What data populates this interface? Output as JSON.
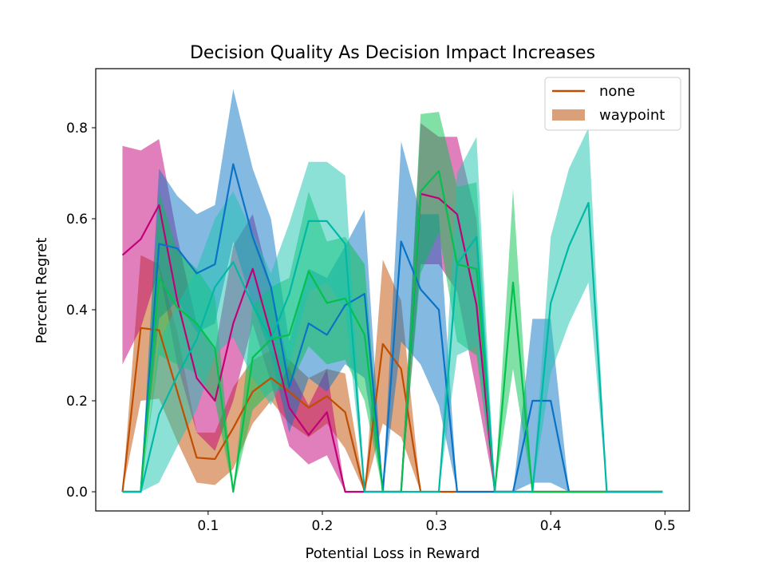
{
  "chart_data": {
    "type": "line",
    "title": "Decision Quality As Decision Impact Increases",
    "xlabel": "Potential Loss in Reward",
    "ylabel": "Percent Regret",
    "xlim": [
      -0.0,
      0.5
    ],
    "ylim": [
      -0.0,
      0.9
    ],
    "xticks": [
      0.1,
      0.2,
      0.3,
      0.4,
      0.5
    ],
    "xtick_labels": [
      "0.1",
      "0.2",
      "0.3",
      "0.4",
      "0.5"
    ],
    "yticks": [
      0.0,
      0.2,
      0.4,
      0.6,
      0.8
    ],
    "ytick_labels": [
      "0.0",
      "0.2",
      "0.4",
      "0.6",
      "0.8"
    ],
    "grid": false,
    "legend_position": "top-right",
    "legend": [
      {
        "label": "none",
        "kind": "line",
        "color": "#c04e01"
      },
      {
        "label": "waypoint",
        "kind": "patch",
        "color": "#daa07a"
      }
    ],
    "x": [
      0.025,
      0.041,
      0.057,
      0.073,
      0.09,
      0.106,
      0.122,
      0.139,
      0.155,
      0.171,
      0.188,
      0.204,
      0.22,
      0.237,
      0.253,
      0.269,
      0.286,
      0.302,
      0.318,
      0.335,
      0.351,
      0.367,
      0.384,
      0.4,
      0.416,
      0.433,
      0.449,
      0.465,
      0.482,
      0.498
    ],
    "series": [
      {
        "color": "#c04e01",
        "fill": "#c04e01",
        "values": [
          0.0,
          0.36,
          0.355,
          0.22,
          0.075,
          0.072,
          0.14,
          0.22,
          0.25,
          0.22,
          0.185,
          0.21,
          0.175,
          0.0,
          0.325,
          0.27,
          0.0,
          0.0,
          0.0,
          0.0,
          0.0,
          0.0,
          0.0,
          0.0,
          0.0,
          0.0,
          0.0,
          0.0,
          0.0,
          0.0
        ],
        "lower": [
          0.0,
          0.2,
          0.205,
          0.11,
          0.02,
          0.015,
          0.05,
          0.15,
          0.2,
          0.15,
          0.12,
          0.15,
          0.095,
          0.0,
          0.15,
          0.12,
          0.0,
          0.0,
          0.0,
          0.0,
          0.0,
          0.0,
          0.0,
          0.0,
          0.0,
          0.0,
          0.0,
          0.0,
          0.0,
          0.0
        ],
        "upper": [
          0.0,
          0.52,
          0.5,
          0.35,
          0.13,
          0.13,
          0.23,
          0.29,
          0.31,
          0.29,
          0.25,
          0.27,
          0.26,
          0.0,
          0.51,
          0.42,
          0.0,
          0.0,
          0.0,
          0.0,
          0.0,
          0.0,
          0.0,
          0.0,
          0.0,
          0.0,
          0.0,
          0.0,
          0.0,
          0.0
        ]
      },
      {
        "color": "#c20078",
        "fill": "#c20078",
        "values": [
          0.52,
          0.555,
          0.63,
          0.42,
          0.25,
          0.2,
          0.37,
          0.49,
          0.345,
          0.185,
          0.125,
          0.175,
          0.0,
          0.0,
          0.0,
          0.0,
          0.655,
          0.645,
          0.61,
          0.41,
          0.0,
          0.0,
          0.0,
          0.0,
          0.0,
          0.0,
          0.0,
          0.0,
          0.0,
          0.0
        ],
        "lower": [
          0.28,
          0.36,
          0.49,
          0.28,
          0.13,
          0.09,
          0.2,
          0.37,
          0.24,
          0.1,
          0.06,
          0.08,
          0.0,
          0.0,
          0.0,
          0.0,
          0.5,
          0.5,
          0.44,
          0.22,
          0.0,
          0.0,
          0.0,
          0.0,
          0.0,
          0.0,
          0.0,
          0.0,
          0.0,
          0.0
        ],
        "upper": [
          0.76,
          0.75,
          0.775,
          0.56,
          0.37,
          0.31,
          0.54,
          0.61,
          0.45,
          0.27,
          0.19,
          0.27,
          0.0,
          0.0,
          0.0,
          0.0,
          0.81,
          0.78,
          0.78,
          0.6,
          0.0,
          0.0,
          0.0,
          0.0,
          0.0,
          0.0,
          0.0,
          0.0,
          0.0,
          0.0
        ]
      },
      {
        "color": "#0a73c5",
        "fill": "#0a73c5",
        "values": [
          0.0,
          0.0,
          0.545,
          0.535,
          0.48,
          0.5,
          0.72,
          0.56,
          0.45,
          0.23,
          0.37,
          0.345,
          0.41,
          0.435,
          0.0,
          0.55,
          0.445,
          0.4,
          0.0,
          0.0,
          0.0,
          0.0,
          0.2,
          0.2,
          0.0,
          0.0,
          0.0,
          0.0,
          0.0,
          0.0
        ],
        "lower": [
          0.0,
          0.0,
          0.38,
          0.42,
          0.35,
          0.37,
          0.55,
          0.41,
          0.3,
          0.13,
          0.25,
          0.22,
          0.28,
          0.25,
          0.0,
          0.33,
          0.28,
          0.19,
          0.0,
          0.0,
          0.0,
          0.0,
          0.02,
          0.02,
          0.0,
          0.0,
          0.0,
          0.0,
          0.0,
          0.0
        ],
        "upper": [
          0.0,
          0.0,
          0.71,
          0.65,
          0.61,
          0.63,
          0.885,
          0.71,
          0.6,
          0.33,
          0.49,
          0.47,
          0.54,
          0.62,
          0.0,
          0.77,
          0.61,
          0.61,
          0.0,
          0.0,
          0.0,
          0.0,
          0.38,
          0.38,
          0.0,
          0.0,
          0.0,
          0.0,
          0.0,
          0.0
        ]
      },
      {
        "color": "#02c14d",
        "fill": "#02c14d",
        "values": [
          0.0,
          0.0,
          0.47,
          0.405,
          0.37,
          0.315,
          0.0,
          0.295,
          0.335,
          0.345,
          0.485,
          0.415,
          0.425,
          0.345,
          0.0,
          0.0,
          0.66,
          0.705,
          0.5,
          0.49,
          0.0,
          0.46,
          0.0,
          0.0,
          0.0,
          0.0,
          0.0,
          0.0,
          0.0,
          0.0
        ],
        "lower": [
          0.0,
          0.0,
          0.3,
          0.28,
          0.26,
          0.2,
          0.0,
          0.18,
          0.22,
          0.23,
          0.32,
          0.28,
          0.29,
          0.2,
          0.0,
          0.0,
          0.48,
          0.57,
          0.33,
          0.3,
          0.0,
          0.27,
          0.0,
          0.0,
          0.0,
          0.0,
          0.0,
          0.0,
          0.0,
          0.0
        ],
        "upper": [
          0.0,
          0.0,
          0.66,
          0.53,
          0.49,
          0.43,
          0.0,
          0.41,
          0.45,
          0.47,
          0.66,
          0.55,
          0.56,
          0.5,
          0.0,
          0.0,
          0.83,
          0.835,
          0.67,
          0.68,
          0.0,
          0.665,
          0.0,
          0.0,
          0.0,
          0.0,
          0.0,
          0.0,
          0.0,
          0.0
        ]
      },
      {
        "color": "#00b8a5",
        "fill": "#19c3ae",
        "values": [
          0.0,
          0.0,
          0.17,
          0.255,
          0.335,
          0.45,
          0.505,
          0.41,
          0.335,
          0.435,
          0.595,
          0.595,
          0.545,
          0.0,
          0.0,
          0.0,
          0.0,
          0.0,
          0.5,
          0.56,
          0.0,
          0.0,
          0.0,
          0.415,
          0.54,
          0.635,
          0.0,
          0.0,
          0.0,
          0.0
        ],
        "lower": [
          0.0,
          0.0,
          0.02,
          0.1,
          0.18,
          0.3,
          0.34,
          0.25,
          0.19,
          0.28,
          0.44,
          0.46,
          0.4,
          0.0,
          0.0,
          0.0,
          0.0,
          0.0,
          0.3,
          0.32,
          0.0,
          0.0,
          0.0,
          0.26,
          0.37,
          0.46,
          0.0,
          0.0,
          0.0,
          0.0
        ],
        "upper": [
          0.0,
          0.0,
          0.33,
          0.41,
          0.49,
          0.6,
          0.66,
          0.57,
          0.48,
          0.59,
          0.725,
          0.725,
          0.695,
          0.0,
          0.0,
          0.0,
          0.0,
          0.0,
          0.7,
          0.78,
          0.0,
          0.0,
          0.0,
          0.56,
          0.71,
          0.8,
          0.0,
          0.0,
          0.0,
          0.0
        ]
      }
    ]
  }
}
